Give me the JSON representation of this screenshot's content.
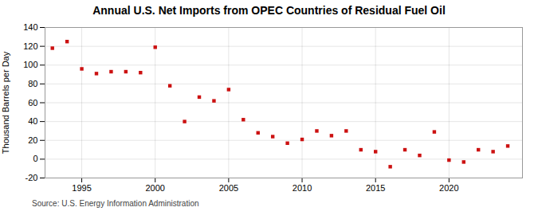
{
  "chart_data": {
    "type": "scatter",
    "title": "Annual U.S. Net Imports from OPEC Countries of Residual Fuel Oil",
    "ylabel": "Thousand Barrels per Day",
    "source": "Source: U.S. Energy Information Administration",
    "x": [
      1993,
      1994,
      1995,
      1996,
      1997,
      1998,
      1999,
      2000,
      2001,
      2002,
      2003,
      2004,
      2005,
      2006,
      2007,
      2008,
      2009,
      2010,
      2011,
      2012,
      2013,
      2014,
      2015,
      2016,
      2017,
      2018,
      2019,
      2020,
      2021,
      2022,
      2023,
      2024
    ],
    "values": [
      118,
      125,
      96,
      91,
      93,
      93,
      92,
      119,
      78,
      40,
      66,
      62,
      74,
      42,
      28,
      24,
      17,
      21,
      30,
      25,
      30,
      10,
      8,
      -8,
      10,
      4,
      29,
      -1,
      -3,
      10,
      8,
      14
    ],
    "color": "#cc1111",
    "marker": "square",
    "xlim": [
      1992.5,
      2025
    ],
    "ylim": [
      -20,
      140
    ],
    "xticks": [
      1995,
      2000,
      2005,
      2010,
      2015,
      2020
    ],
    "yticks": [
      -20,
      0,
      20,
      40,
      60,
      80,
      100,
      120,
      140
    ],
    "grid": true
  }
}
